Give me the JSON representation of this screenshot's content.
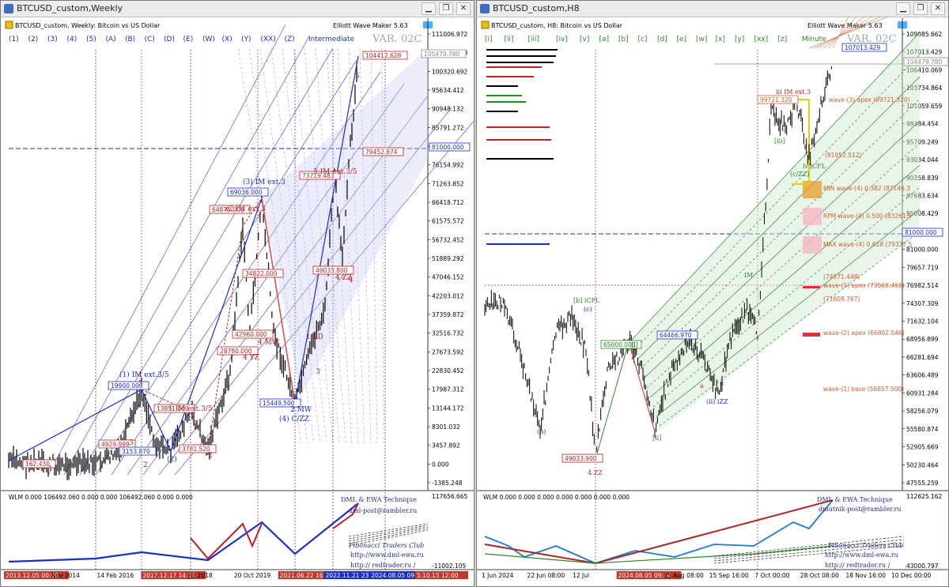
{
  "left": {
    "title": "BTCUSD_custom,Weekly",
    "header": "BTCUSD_custom, Weekly:  Bitcoin vs US Dollar",
    "plugin": "Elliott Wave Maker 5.63",
    "var_label": "VAR. 02C",
    "degree_label": "Intermediate",
    "degree_buttons": [
      "(1)",
      "(2)",
      "(3)",
      "(4)",
      "(5)",
      "(A)",
      "(B)",
      "(C)",
      "(D)",
      "(E)",
      "(W)",
      "(X)",
      "(Y)",
      "(XX)",
      "(Z)"
    ],
    "price_ticks": [
      "111006.972",
      "105479.780",
      "100320.692",
      "95634.412",
      "90948.132",
      "85791.272",
      "81000.000",
      "76154.992",
      "71263.852",
      "66418.712",
      "61575.572",
      "56732.452",
      "51889.292",
      "47046.152",
      "42203.012",
      "37359.872",
      "32516.732",
      "27673.592",
      "22830.452",
      "17987.312",
      "13144.172",
      "8301.032",
      "3457.892",
      "0.000",
      "-1385.248"
    ],
    "x_labels": [
      "2013.12.05 00:00",
      "Nov 2014",
      "14 Feb 2016",
      "2017.12.17 14:14",
      "Jul 2018",
      "20 Oct 2019",
      "2021.06.22 16:55",
      "2022.11.21 23:00",
      "2024.08.05 09:24",
      "5.10.15 12:00"
    ],
    "price_boxes": [
      "104412.628",
      "105479.780",
      "81000.000",
      "79452.874",
      "73719.483",
      "69036.000",
      "64875.000",
      "49033.800",
      "19900.000",
      "15449.500",
      "13851.000",
      "4929.999",
      "3153.870",
      "3781.520",
      "162.430",
      "28780.000",
      "34822.000",
      "42960.000"
    ],
    "wave_labels": [
      "(1) IM ext.3/5",
      "(2)",
      "(3) IM ext.3",
      "(4) C/ZZ",
      "1 IM ext.3/5",
      "3",
      "5",
      "2",
      "4 MW",
      "4 YZ",
      "4 ZZ",
      "1 LD",
      "2 MW",
      "x2 IM ext.3",
      "3 IM ext.3/5",
      "1",
      "2",
      "3",
      "4",
      "5"
    ],
    "sub_header": "WLM 0.000 106492.060 0.000 0.000 106492.060 0.000 0.000",
    "sub_ticks": [
      "117656.665",
      "-11002.105"
    ],
    "sub_notes": [
      "DML & EWA Technique",
      "dml-post@rambler.ru",
      "Fibonacci  Traders  Club",
      "http://www.dml-ewa.ru",
      "http:// redtrader.ru /"
    ]
  },
  "right": {
    "title": "BTCUSD_custom,H8",
    "header": "BTCUSD_custom, H8:  Bitcoin vs US Dollar",
    "plugin": "Elliott Wave Maker 5.63",
    "var_label": "VAR. 02C",
    "degree_label": "Minute",
    "degree_buttons": [
      "[i]",
      "[ii]",
      "[iii]",
      "[iv]",
      "[v]",
      "[a]",
      "[b]",
      "[c]",
      "[d]",
      "[e]",
      "[w]",
      "[x]",
      "[y]",
      "[xx]",
      "[z]"
    ],
    "price_ticks": [
      "109085.662",
      "107013.429",
      "106410.069",
      "103734.864",
      "101059.659",
      "98384.454",
      "95709.249",
      "93034.044",
      "90358.839",
      "87683.634",
      "85008.429",
      "82333.224",
      "81000.000",
      "79657.719",
      "76982.514",
      "74307.309",
      "71632.104",
      "68956.899",
      "66281.694",
      "63606.489",
      "60931.284",
      "58256.079",
      "55580.874",
      "52905.669",
      "50230.464",
      "47555.259"
    ],
    "x_labels": [
      "1 Jun 2024",
      "22 Jun 08:00",
      "12 Jul",
      "2024.08.05 09:24",
      "25 Aug 08:00",
      "15 Sep 16:00",
      "7 Oct 00:00",
      "28 Oct 08:00",
      "18 Nov 16:00",
      "10 Dec 00:00"
    ],
    "fib_levels": [
      "MIN wave-(4) 0.382 (87146.3",
      "RPM wave-(4) 0.500 (83261.9",
      "MAX wave-(4) 0.618 (79377.5",
      "(74571.448)",
      "wave-(1) apex (73568.468)",
      "(71608.767)",
      "wave-(2) apex (66802.546)",
      "wave-(1) base (58857.500)",
      "wave-(3) apex (99721.320)",
      "(91952.512)"
    ],
    "price_boxes": [
      "107013.429",
      "99721.320",
      "65000.000",
      "64466.970",
      "49033.900",
      "81000.000",
      "104479.780"
    ],
    "wave_labels": [
      "iii IM ext.3",
      "[b] iCFL",
      "(c)",
      "(b)",
      "[ii]",
      "iv iCFL",
      "4 ZZ",
      "[i]",
      "c",
      "a",
      "(ii) iZZ",
      "[iii]",
      "(c/ZZ)",
      "IM"
    ],
    "sub_header": "WLM 0.000 0.000 0.000 0.000 0.000 0.000 0.000",
    "sub_ticks": [
      "112625.162",
      "43000.797"
    ],
    "sub_notes": [
      "DML & EWA Technique",
      "dmutnik-post@rambler.ru",
      "Fibonacci  Traders  Club",
      "http://www.dml-ewa.ru",
      "http:// redtrader.ru /"
    ]
  },
  "colors": {
    "bull": "#1a2ecc",
    "bear": "#b22222",
    "green": "#3d9b3d",
    "grid": "#2b2bd0",
    "candle": "#000000"
  },
  "chart_data": [
    {
      "type": "line",
      "title": "BTCUSD_custom, Weekly",
      "ylim": [
        -1385.248,
        111006.972
      ],
      "x": [
        "2013-12",
        "2014-11",
        "2016-02",
        "2017-12",
        "2018-07",
        "2019-10",
        "2021-06",
        "2022-11",
        "2024-08",
        "2025-10"
      ],
      "series": [
        {
          "values": [
            800,
            400,
            400,
            19900,
            3153,
            13851,
            64875,
            15449,
            73719,
            104412
          ]
        }
      ]
    },
    {
      "type": "line",
      "title": "BTCUSD_custom, H8",
      "ylim": [
        47555.259,
        109085.662
      ],
      "x": [
        "2024-06-01",
        "2024-06-22",
        "2024-07-12",
        "2024-08-05",
        "2024-08-25",
        "2024-09-15",
        "2024-10-07",
        "2024-10-28",
        "2024-11-18",
        "2024-12-10"
      ],
      "series": [
        {
          "values": [
            70000,
            63000,
            57000,
            49033,
            65000,
            58000,
            64466,
            71000,
            99721,
            107013
          ]
        }
      ]
    }
  ]
}
